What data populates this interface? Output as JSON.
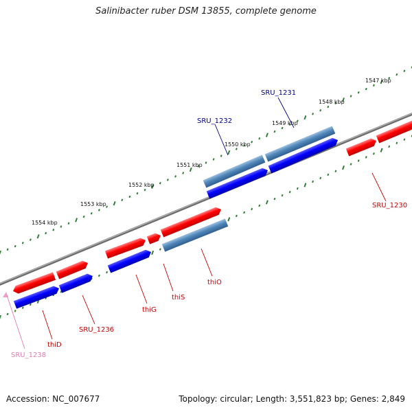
{
  "title": "Salinibacter ruber DSM 13855, complete genome",
  "footer": {
    "accession": "Accession: NC_007677",
    "stats": "Topology: circular; Length: 3,551,823 bp; Genes: 2,849"
  },
  "ruler": {
    "labels": [
      "1547 kbp",
      "1548 kbp",
      "1549 kbp",
      "1550 kbp",
      "1551 kbp",
      "1552 kbp",
      "1553 kbp",
      "1554 kbp"
    ]
  },
  "genes": [
    {
      "name": "SRU_1231",
      "color": "#00008b"
    },
    {
      "name": "SRU_1232",
      "color": "#00008b"
    },
    {
      "name": "SRU_1230",
      "color": "#cc0000"
    },
    {
      "name": "thiO",
      "color": "#cc0000"
    },
    {
      "name": "thiS",
      "color": "#cc0000"
    },
    {
      "name": "thiG",
      "color": "#cc0000"
    },
    {
      "name": "SRU_1236",
      "color": "#cc0000"
    },
    {
      "name": "thiD",
      "color": "#cc0000"
    },
    {
      "name": "SRU_1238",
      "color": "#e87ab3"
    }
  ],
  "colors": {
    "cds_forward": "#ff0000",
    "cds_reverse": "#4f86b8",
    "gene_feature": "#0000ff",
    "backbone": "#808080",
    "ticks": "#2e7d32"
  }
}
